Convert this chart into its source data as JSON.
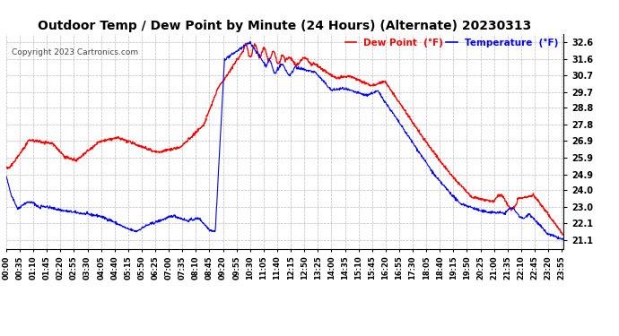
{
  "title": "Outdoor Temp / Dew Point by Minute (24 Hours) (Alternate) 20230313",
  "copyright": "Copyright 2023 Cartronics.com",
  "legend_dew": "Dew Point  (°F)",
  "legend_temp": "Temperature  (°F)",
  "yticks": [
    21.1,
    22.1,
    23.0,
    24.0,
    24.9,
    25.9,
    26.9,
    27.8,
    28.8,
    29.7,
    30.7,
    31.6,
    32.6
  ],
  "ylim": [
    20.6,
    33.1
  ],
  "color_temp": "#0000FF",
  "color_dew": "#FF0000",
  "bg_color": "#FFFFFF",
  "grid_color": "#BBBBBB",
  "title_fontsize": 10,
  "tick_fontsize": 7,
  "xlabel_fontsize": 6,
  "copyright_fontsize": 6.5
}
